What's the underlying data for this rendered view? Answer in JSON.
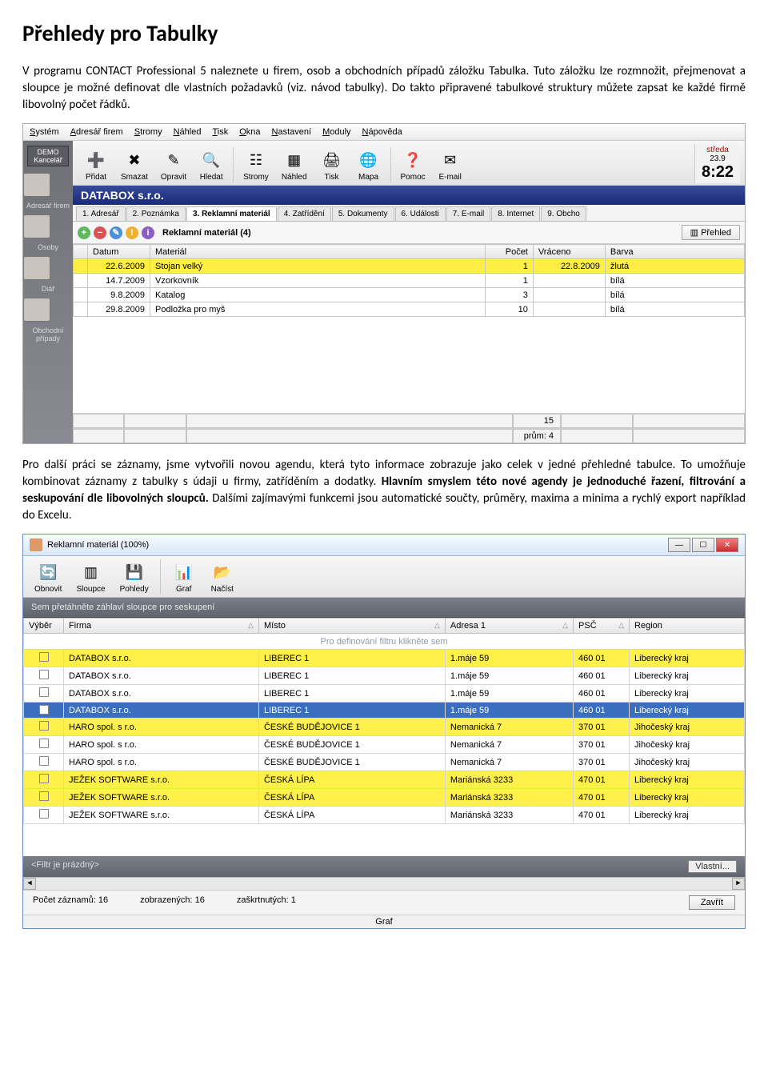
{
  "doc": {
    "title": "Přehledy pro Tabulky",
    "p1": "V programu CONTACT Professional 5 naleznete u firem, osob a obchodních případů záložku Tabulka. Tuto záložku lze rozmnožit, přejmenovat a sloupce je možné definovat dle vlastních požadavků (viz. návod tabulky). Do takto připravené tabulkové struktury můžete zapsat ke každé firmě libovolný počet řádků.",
    "p2a": "Pro další práci se záznamy, jsme vytvořili novou agendu, která tyto informace zobrazuje jako celek v jedné přehledné tabulce. To umožňuje kombinovat záznamy z tabulky s údaji u firmy, zatříděním a dodatky. ",
    "p2b": "Hlavním smyslem této nové agendy je jednoduché řazení, filtrování a seskupování dle libovolných sloupců.",
    "p2c": " Dalšími zajímavými funkcemi jsou automatické součty, průměry, maxima a minima a rychlý export například do Excelu."
  },
  "scr1": {
    "menu": [
      "Systém",
      "Adresář firem",
      "Stromy",
      "Náhled",
      "Tisk",
      "Okna",
      "Nastavení",
      "Moduly",
      "Nápověda"
    ],
    "toolbar": [
      {
        "label": "Přidat",
        "glyph": "➕"
      },
      {
        "label": "Smazat",
        "glyph": "✖"
      },
      {
        "label": "Opravit",
        "glyph": "✎"
      },
      {
        "label": "Hledat",
        "glyph": "🔍"
      },
      {
        "label": "Stromy",
        "glyph": "☷"
      },
      {
        "label": "Náhled",
        "glyph": "▦"
      },
      {
        "label": "Tisk",
        "glyph": "🖨"
      },
      {
        "label": "Mapa",
        "glyph": "🌐"
      },
      {
        "label": "Pomoc",
        "glyph": "❓"
      },
      {
        "label": "E-mail",
        "glyph": "✉"
      }
    ],
    "clock": {
      "day": "středa",
      "date": "23.9",
      "time": "8:22"
    },
    "demo": {
      "line1": "DEMO",
      "line2": "Kancelář"
    },
    "sidelabels": [
      "Adresář firem",
      "Osoby",
      "Diář",
      "Obchodní případy"
    ],
    "titlebar": "DATABOX s.r.o.",
    "tabs": [
      "1. Adresář",
      "2. Poznámka",
      "3. Reklamní materiál",
      "4. Zatřídění",
      "5. Dokumenty",
      "6. Události",
      "7. E-mail",
      "8. Internet",
      "9. Obcho"
    ],
    "activeTab": 2,
    "subbarLabel": "Reklamní materiál (4)",
    "prehlBtn": "Přehled",
    "cols": [
      "",
      "Datum",
      "Materiál",
      "Počet",
      "Vráceno",
      "Barva"
    ],
    "rows": [
      {
        "datum": "22.6.2009",
        "mat": "Stojan velký",
        "pocet": "1",
        "vrac": "22.8.2009",
        "barva": "žlutá",
        "hl": true
      },
      {
        "datum": "14.7.2009",
        "mat": "Vzorkovník",
        "pocet": "1",
        "vrac": "",
        "barva": "bílá",
        "hl": false
      },
      {
        "datum": "9.8.2009",
        "mat": "Katalog",
        "pocet": "3",
        "vrac": "",
        "barva": "bílá",
        "hl": false
      },
      {
        "datum": "29.8.2009",
        "mat": "Podložka pro myš",
        "pocet": "10",
        "vrac": "",
        "barva": "bílá",
        "hl": false
      }
    ],
    "sum": "15",
    "avg": "prům: 4"
  },
  "scr2": {
    "title": "Reklamní materiál (100%)",
    "toolbar": [
      {
        "label": "Obnovit",
        "glyph": "🔄"
      },
      {
        "label": "Sloupce",
        "glyph": "▥"
      },
      {
        "label": "Pohledy",
        "glyph": "💾"
      },
      {
        "label": "Graf",
        "glyph": "📊"
      },
      {
        "label": "Načíst",
        "glyph": "📂"
      }
    ],
    "groupHint": "Sem přetáhněte záhlaví sloupce pro seskupení",
    "cols": [
      "Výběr",
      "Firma",
      "Místo",
      "Adresa 1",
      "PSČ",
      "Region"
    ],
    "filterHint": "Pro definování filtru klikněte sem",
    "rows": [
      {
        "chk": false,
        "yel": true,
        "firma": "DATABOX s.r.o.",
        "misto": "LIBEREC 1",
        "adr": "1.máje 59",
        "psc": "460 01",
        "reg": "Liberecký kraj"
      },
      {
        "chk": false,
        "yel": false,
        "firma": "DATABOX s.r.o.",
        "misto": "LIBEREC 1",
        "adr": "1.máje 59",
        "psc": "460 01",
        "reg": "Liberecký kraj"
      },
      {
        "chk": false,
        "yel": false,
        "firma": "DATABOX s.r.o.",
        "misto": "LIBEREC 1",
        "adr": "1.máje 59",
        "psc": "460 01",
        "reg": "Liberecký kraj"
      },
      {
        "chk": true,
        "yel": false,
        "sel": true,
        "firma": "DATABOX s.r.o.",
        "misto": "LIBEREC 1",
        "adr": "1.máje 59",
        "psc": "460 01",
        "reg": "Liberecký kraj"
      },
      {
        "chk": false,
        "yel": true,
        "firma": "HARO spol. s r.o.",
        "misto": "ČESKÉ BUDĚJOVICE 1",
        "adr": "Nemanická 7",
        "psc": "370 01",
        "reg": "Jihočeský kraj"
      },
      {
        "chk": false,
        "yel": false,
        "firma": "HARO spol. s r.o.",
        "misto": "ČESKÉ BUDĚJOVICE 1",
        "adr": "Nemanická 7",
        "psc": "370 01",
        "reg": "Jihočeský kraj"
      },
      {
        "chk": false,
        "yel": false,
        "firma": "HARO spol. s r.o.",
        "misto": "ČESKÉ BUDĚJOVICE 1",
        "adr": "Nemanická 7",
        "psc": "370 01",
        "reg": "Jihočeský kraj"
      },
      {
        "chk": false,
        "yel": true,
        "firma": "JEŽEK SOFTWARE s.r.o.",
        "misto": "ČESKÁ LÍPA",
        "adr": "Mariánská 3233",
        "psc": "470 01",
        "reg": "Liberecký kraj"
      },
      {
        "chk": false,
        "yel": true,
        "firma": "JEŽEK SOFTWARE s.r.o.",
        "misto": "ČESKÁ LÍPA",
        "adr": "Mariánská 3233",
        "psc": "470 01",
        "reg": "Liberecký kraj"
      },
      {
        "chk": false,
        "yel": false,
        "firma": "JEŽEK SOFTWARE s.r.o.",
        "misto": "ČESKÁ LÍPA",
        "adr": "Mariánská 3233",
        "psc": "470 01",
        "reg": "Liberecký kraj"
      }
    ],
    "filterEmpty": "<Filtr je prázdný>",
    "ownBtn": "Vlastní...",
    "status": {
      "records": "Počet záznamů:  16",
      "shown": "zobrazených:  16",
      "checked": "zaškrtnutých:  1",
      "close": "Zavřít"
    },
    "graf": "Graf"
  }
}
